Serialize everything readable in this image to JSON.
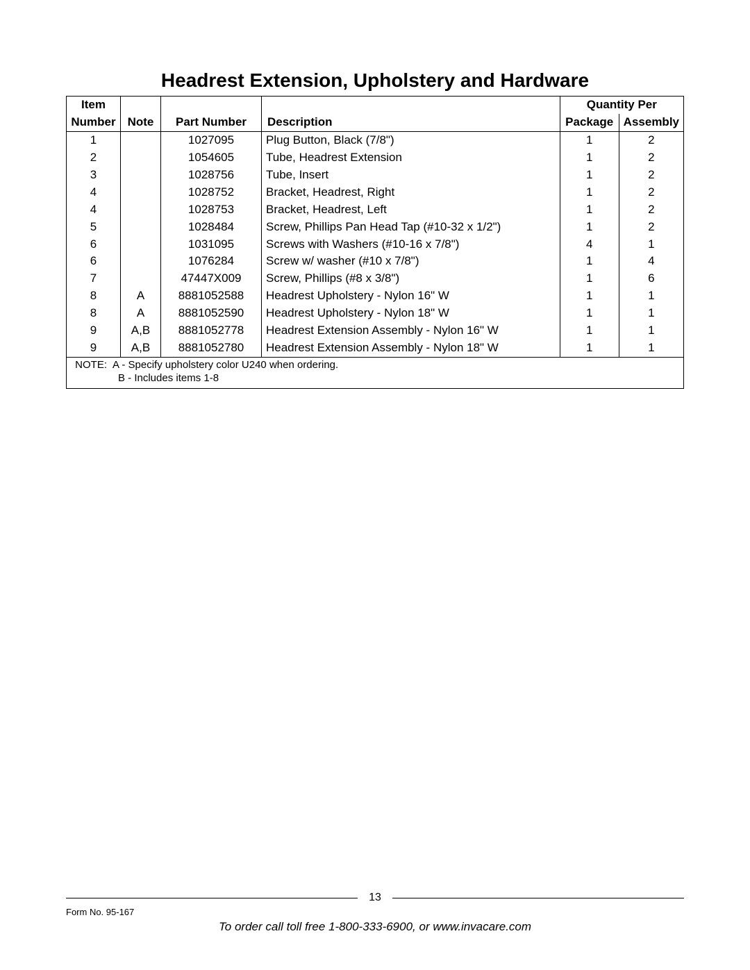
{
  "title": "Headrest Extension, Upholstery and Hardware",
  "table": {
    "headers": {
      "item_top": "Item",
      "qty_group": "Quantity Per",
      "item": "Number",
      "note": "Note",
      "part": "Part Number",
      "desc": "Description",
      "pkg": "Package",
      "asm": "Assembly"
    },
    "rows": [
      {
        "item": "1",
        "note": "",
        "part": "1027095",
        "desc": "Plug Button, Black (7/8\")",
        "pkg": "1",
        "asm": "2"
      },
      {
        "item": "2",
        "note": "",
        "part": "1054605",
        "desc": "Tube, Headrest Extension",
        "pkg": "1",
        "asm": "2"
      },
      {
        "item": "3",
        "note": "",
        "part": "1028756",
        "desc": "Tube, Insert",
        "pkg": "1",
        "asm": "2"
      },
      {
        "item": "4",
        "note": "",
        "part": "1028752",
        "desc": "Bracket, Headrest, Right",
        "pkg": "1",
        "asm": "2"
      },
      {
        "item": "4",
        "note": "",
        "part": "1028753",
        "desc": "Bracket, Headrest, Left",
        "pkg": "1",
        "asm": "2"
      },
      {
        "item": "5",
        "note": "",
        "part": "1028484",
        "desc": "Screw, Phillips Pan Head Tap (#10-32 x 1/2\")",
        "pkg": "1",
        "asm": "2"
      },
      {
        "item": "6",
        "note": "",
        "part": "1031095",
        "desc": "Screws with Washers (#10-16 x 7/8\")",
        "pkg": "4",
        "asm": "1"
      },
      {
        "item": "6",
        "note": "",
        "part": "1076284",
        "desc": "Screw w/  washer (#10 x 7/8\")",
        "pkg": "1",
        "asm": "4"
      },
      {
        "item": "7",
        "note": "",
        "part": "47447X009",
        "desc": "Screw, Phillips (#8 x 3/8\")",
        "pkg": "1",
        "asm": "6"
      },
      {
        "item": "8",
        "note": "A",
        "part": "8881052588",
        "desc": "Headrest Upholstery - Nylon 16\" W",
        "pkg": "1",
        "asm": "1"
      },
      {
        "item": "8",
        "note": "A",
        "part": "8881052590",
        "desc": "Headrest Upholstery - Nylon 18\" W",
        "pkg": "1",
        "asm": "1"
      },
      {
        "item": "9",
        "note": "A,B",
        "part": "8881052778",
        "desc": "Headrest Extension Assembly - Nylon 16\" W",
        "pkg": "1",
        "asm": "1"
      },
      {
        "item": "9",
        "note": "A,B",
        "part": "8881052780",
        "desc": "Headrest Extension Assembly - Nylon 18\" W",
        "pkg": "1",
        "asm": "1"
      }
    ],
    "note_label": "NOTE:",
    "note_a": "A - Specify upholstery color U240 when ordering.",
    "note_b": "B - Includes items 1-8"
  },
  "footer": {
    "page_number": "13",
    "form_no": "Form No. 95-167",
    "order_line": "To order call toll free 1-800-333-6900, or www.invacare.com"
  }
}
